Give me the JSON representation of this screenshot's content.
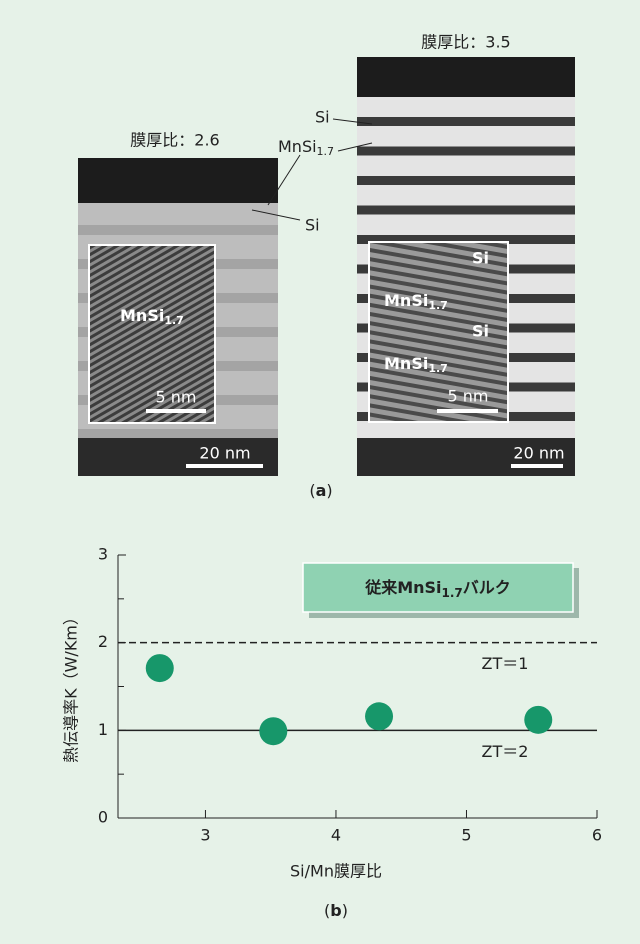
{
  "figure_a": {
    "left": {
      "title": "膜厚比：2.6",
      "inset_label": {
        "base": "MnSi",
        "sub": "1.7"
      },
      "inset_scale": "5 nm",
      "scale": "20 nm"
    },
    "right": {
      "title": "膜厚比：3.5",
      "inset_labels": [
        "Si",
        {
          "base": "MnSi",
          "sub": "1.7"
        },
        "Si",
        {
          "base": "MnSi",
          "sub": "1.7"
        }
      ],
      "inset_scale": "5 nm",
      "scale": "20 nm"
    },
    "pointers": {
      "si_top": "Si",
      "mnsi": {
        "base": "MnSi",
        "sub": "1.7"
      },
      "si_bottom": "Si"
    },
    "caption": {
      "open": "(",
      "letter": "a",
      "close": ")"
    }
  },
  "chart_data": {
    "type": "scatter",
    "x": [
      2.65,
      3.52,
      4.33,
      5.55
    ],
    "values": [
      1.71,
      0.99,
      1.16,
      1.12
    ],
    "color": "#17976a",
    "xlim": [
      2.33,
      6
    ],
    "ylim": [
      0,
      3
    ],
    "xticks": [
      3,
      4,
      5,
      6
    ],
    "yticks": [
      0,
      1,
      2,
      3
    ],
    "yminor": [
      0.5,
      1.5,
      2.5
    ],
    "xlabel": "Si/Mn膜厚比",
    "ylabel": "熱伝導率K（W/Km）",
    "annotation": {
      "base": "従来MnSi",
      "sub": "1.7",
      "rest": "バルク"
    },
    "hlines": [
      {
        "value": 2,
        "style": "dashed",
        "label": "ZT＝1"
      },
      {
        "value": 1,
        "style": "solid",
        "label": "ZT＝2"
      }
    ],
    "caption": {
      "open": "(",
      "letter": "b",
      "close": ")"
    }
  }
}
